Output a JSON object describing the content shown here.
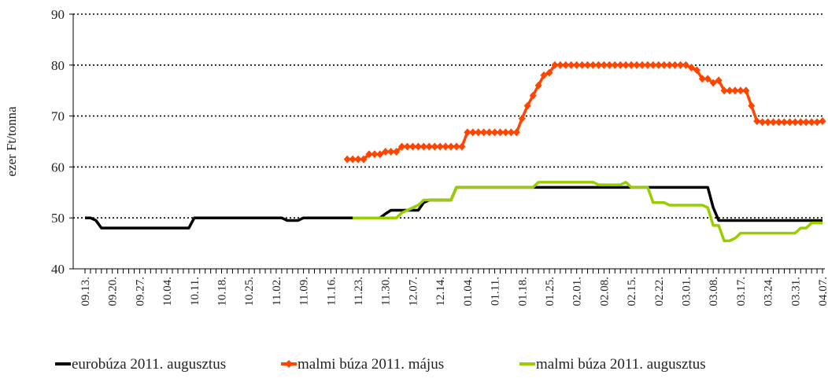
{
  "chart_data": {
    "type": "line",
    "y_label": "ezer Ft/tonna",
    "ylim": [
      40,
      90
    ],
    "yticks": [
      40,
      50,
      60,
      70,
      80,
      90
    ],
    "grid": true,
    "categories": [
      "09.13.",
      null,
      null,
      null,
      null,
      "09.20.",
      null,
      null,
      null,
      null,
      "09.27.",
      null,
      null,
      null,
      null,
      "10.04.",
      null,
      null,
      null,
      null,
      "10.11.",
      null,
      null,
      null,
      null,
      "10.18.",
      null,
      null,
      null,
      null,
      "10.25.",
      null,
      null,
      null,
      null,
      "11.02.",
      null,
      null,
      null,
      null,
      "11.09.",
      null,
      null,
      null,
      null,
      "11.16.",
      null,
      null,
      null,
      null,
      "11.23.",
      null,
      null,
      null,
      null,
      "11.30.",
      null,
      null,
      null,
      null,
      "12.07.",
      null,
      null,
      null,
      null,
      "12.14.",
      null,
      null,
      null,
      null,
      "01.04.",
      null,
      null,
      null,
      null,
      "01.11.",
      null,
      null,
      null,
      null,
      "01.18.",
      null,
      null,
      null,
      null,
      "01.25.",
      null,
      null,
      null,
      null,
      "02.01.",
      null,
      null,
      null,
      null,
      "02.08.",
      null,
      null,
      null,
      null,
      "02.15.",
      null,
      null,
      null,
      null,
      "02.22.",
      null,
      null,
      null,
      null,
      "03.01.",
      null,
      null,
      null,
      null,
      "03.08.",
      null,
      null,
      null,
      null,
      "03.17.",
      null,
      null,
      null,
      null,
      "03.24.",
      null,
      null,
      null,
      null,
      "03.31.",
      null,
      null,
      null,
      null,
      "04.07."
    ],
    "series": [
      {
        "name": "eurobúza 2011. augusztus",
        "color": "#000000",
        "marker": false,
        "values": [
          50,
          50,
          49.5,
          48,
          48,
          48,
          48,
          48,
          48,
          48,
          48,
          48,
          48,
          48,
          48,
          48,
          48,
          48,
          48,
          48,
          50,
          50,
          50,
          50,
          50,
          50,
          50,
          50,
          50,
          50,
          50,
          50,
          50,
          50,
          50,
          50,
          50,
          49.5,
          49.5,
          49.5,
          50,
          50,
          50,
          50,
          50,
          50,
          50,
          50,
          50,
          50,
          50,
          50,
          50,
          50,
          50,
          50.8,
          51.5,
          51.5,
          51.5,
          51.5,
          51.5,
          51.5,
          53,
          53.5,
          53.5,
          53.5,
          53.5,
          53.5,
          56,
          56,
          56,
          56,
          56,
          56,
          56,
          56,
          56,
          56,
          56,
          56,
          56,
          56,
          56,
          56,
          56,
          56,
          56,
          56,
          56,
          56,
          56,
          56,
          56,
          56,
          56,
          56,
          56,
          56,
          56,
          56,
          56,
          56,
          56,
          56,
          56,
          56,
          56,
          56,
          56,
          56,
          56,
          56,
          56,
          56,
          56,
          52,
          49.5,
          49.5,
          49.5,
          49.5,
          49.5,
          49.5,
          49.5,
          49.5,
          49.5,
          49.5,
          49.5,
          49.5,
          49.5,
          49.5,
          49.5,
          49.5,
          49.5,
          49.5,
          49.5,
          49.5
        ]
      },
      {
        "name": "malmi búza 2011. május",
        "color": "#ff4500",
        "marker": true,
        "values": [
          null,
          null,
          null,
          null,
          null,
          null,
          null,
          null,
          null,
          null,
          null,
          null,
          null,
          null,
          null,
          null,
          null,
          null,
          null,
          null,
          null,
          null,
          null,
          null,
          null,
          null,
          null,
          null,
          null,
          null,
          null,
          null,
          null,
          null,
          null,
          null,
          null,
          null,
          null,
          null,
          null,
          null,
          null,
          null,
          null,
          null,
          null,
          null,
          61.5,
          61.5,
          61.5,
          61.5,
          62.5,
          62.5,
          62.5,
          63,
          63,
          63,
          64,
          64,
          64,
          64,
          64,
          64,
          64,
          64,
          64,
          64,
          64,
          64,
          66.8,
          66.8,
          66.8,
          66.8,
          66.8,
          66.8,
          66.8,
          66.8,
          66.8,
          66.8,
          69.5,
          72,
          74,
          76,
          78,
          78.5,
          80,
          80,
          80,
          80,
          80,
          80,
          80,
          80,
          80,
          80,
          80,
          80,
          80,
          80,
          80,
          80,
          80,
          80,
          80,
          80,
          80,
          80,
          80,
          80,
          80,
          79.5,
          79,
          77.3,
          77.3,
          76.5,
          77,
          75,
          75,
          75,
          75,
          75,
          72,
          69,
          68.8,
          68.8,
          68.8,
          68.8,
          68.8,
          68.8,
          68.8,
          68.8,
          68.8,
          68.8,
          68.8,
          69
        ]
      },
      {
        "name": "malmi búza 2011. augusztus",
        "color": "#9acd00",
        "marker": false,
        "values": [
          null,
          null,
          null,
          null,
          null,
          null,
          null,
          null,
          null,
          null,
          null,
          null,
          null,
          null,
          null,
          null,
          null,
          null,
          null,
          null,
          null,
          null,
          null,
          null,
          null,
          null,
          null,
          null,
          null,
          null,
          null,
          null,
          null,
          null,
          null,
          null,
          null,
          null,
          null,
          null,
          null,
          null,
          null,
          null,
          null,
          null,
          null,
          null,
          null,
          50,
          50,
          50,
          50,
          50,
          50,
          50,
          50,
          50,
          51,
          51.5,
          52,
          52.5,
          53.5,
          53.5,
          53.5,
          53.5,
          53.5,
          53.5,
          56,
          56,
          56,
          56,
          56,
          56,
          56,
          56,
          56,
          56,
          56,
          56,
          56,
          56,
          56,
          57,
          57,
          57,
          57,
          57,
          57,
          57,
          57,
          57,
          57,
          57,
          56.5,
          56.5,
          56.5,
          56.5,
          56.5,
          57,
          56,
          56,
          56,
          56,
          53,
          53,
          53,
          52.5,
          52.5,
          52.5,
          52.5,
          52.5,
          52.5,
          52.5,
          52,
          48.5,
          48.5,
          45.5,
          45.5,
          46,
          47,
          47,
          47,
          47,
          47,
          47,
          47,
          47,
          47,
          47,
          47,
          48,
          48,
          49,
          49,
          49
        ]
      }
    ]
  }
}
